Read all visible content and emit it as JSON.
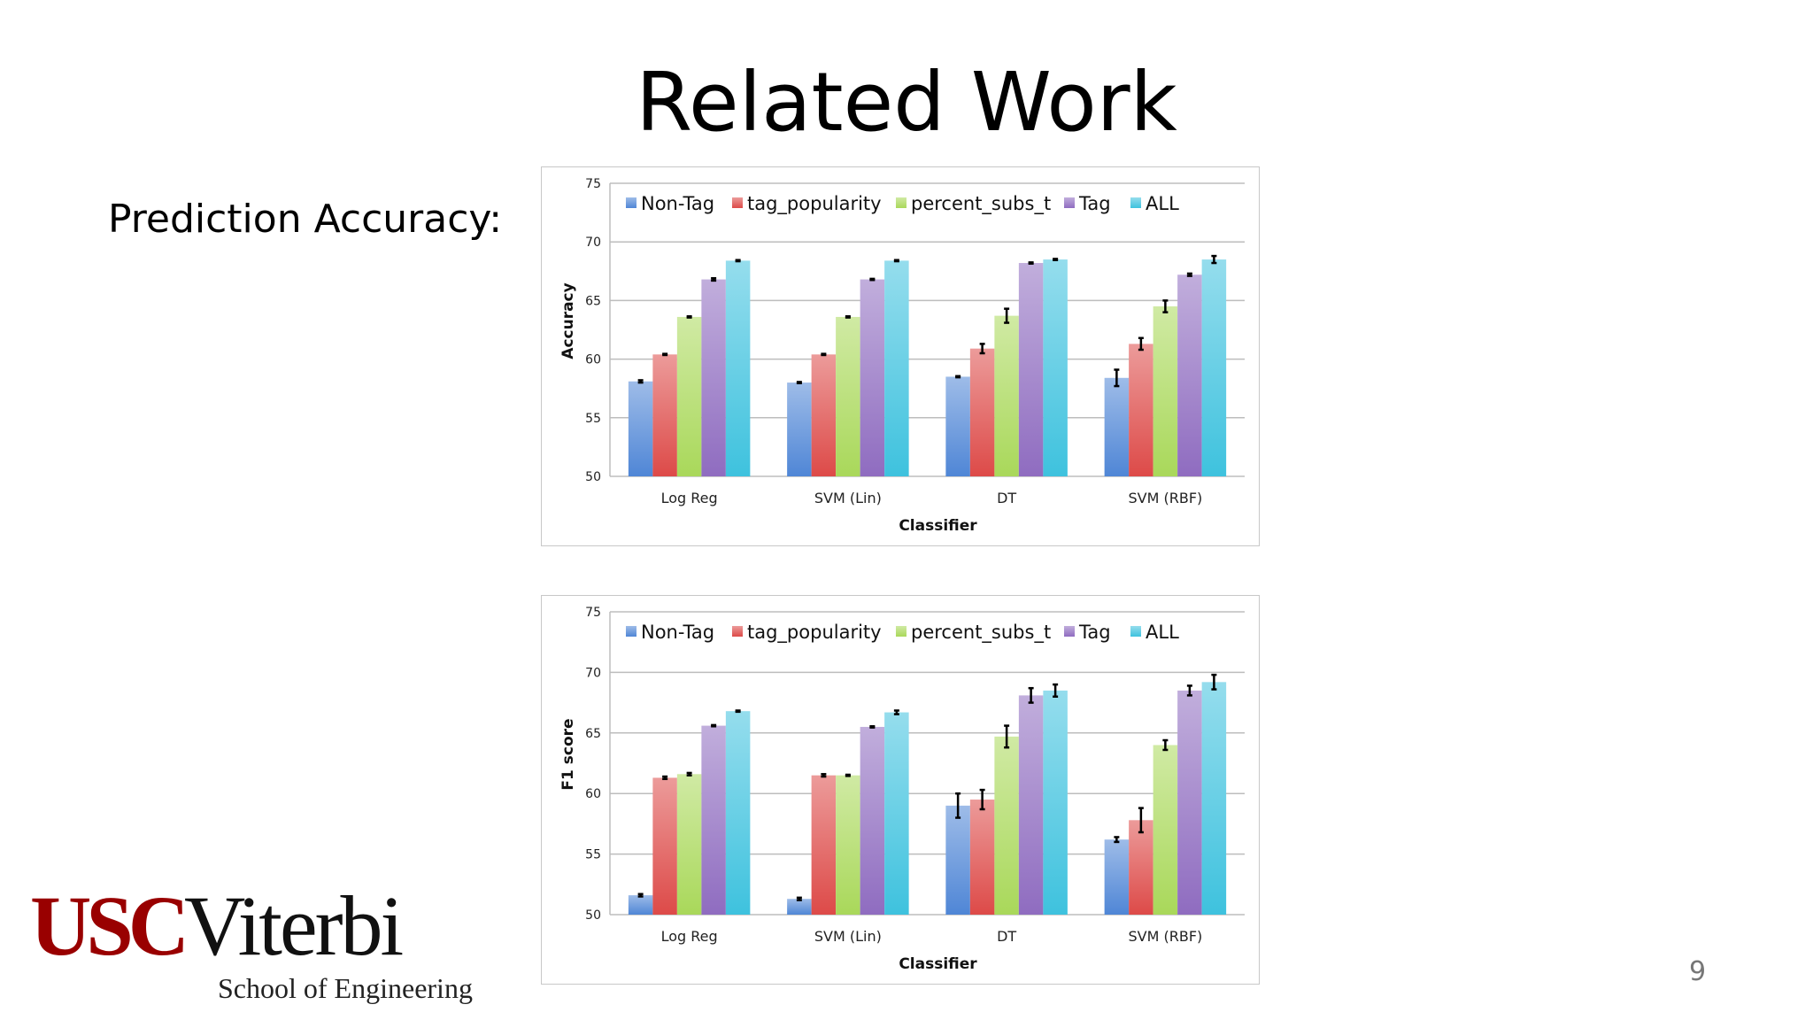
{
  "slide": {
    "title": "Related Work",
    "subtitle": "Prediction Accuracy:",
    "page_number": "9",
    "logo": {
      "usc": "USC",
      "viterbi": "Viterbi",
      "school": "School of Engineering"
    }
  },
  "colors": {
    "Non-Tag": "#4f86d6",
    "tag_popularity": "#dd4a48",
    "percent_subs_t": "#a9d85a",
    "Tag": "#8f6cc0",
    "ALL": "#3ec2de"
  },
  "chart_data": [
    {
      "type": "bar",
      "title": "",
      "xlabel": "Classifier",
      "ylabel": "Accuracy",
      "ylim": [
        50,
        75
      ],
      "yticks": [
        50,
        55,
        60,
        65,
        70,
        75
      ],
      "grid": true,
      "legend": "top",
      "categories": [
        "Log Reg",
        "SVM (Lin)",
        "DT",
        "SVM (RBF)"
      ],
      "series": [
        {
          "name": "Non-Tag",
          "values": [
            58.1,
            58.0,
            58.5,
            58.4
          ],
          "errors": [
            0.1,
            0.05,
            0.05,
            0.7
          ]
        },
        {
          "name": "tag_popularity",
          "values": [
            60.4,
            60.4,
            60.9,
            61.3
          ],
          "errors": [
            0.05,
            0.05,
            0.4,
            0.5
          ]
        },
        {
          "name": "percent_subs_t",
          "values": [
            63.6,
            63.6,
            63.7,
            64.5
          ],
          "errors": [
            0.05,
            0.05,
            0.6,
            0.5
          ]
        },
        {
          "name": "Tag",
          "values": [
            66.8,
            66.8,
            68.2,
            67.2
          ],
          "errors": [
            0.1,
            0.05,
            0.05,
            0.1
          ]
        },
        {
          "name": "ALL",
          "values": [
            68.4,
            68.4,
            68.5,
            68.5
          ],
          "errors": [
            0.05,
            0.05,
            0.05,
            0.3
          ]
        }
      ]
    },
    {
      "type": "bar",
      "title": "",
      "xlabel": "Classifier",
      "ylabel": "F1 score",
      "ylim": [
        50,
        75
      ],
      "yticks": [
        50,
        55,
        60,
        65,
        70,
        75
      ],
      "grid": true,
      "legend": "top",
      "categories": [
        "Log Reg",
        "SVM (Lin)",
        "DT",
        "SVM (RBF)"
      ],
      "series": [
        {
          "name": "Non-Tag",
          "values": [
            51.6,
            51.3,
            59.0,
            56.2
          ],
          "errors": [
            0.1,
            0.1,
            1.0,
            0.2
          ]
        },
        {
          "name": "tag_popularity",
          "values": [
            61.3,
            61.5,
            59.5,
            57.8
          ],
          "errors": [
            0.1,
            0.1,
            0.8,
            1.0
          ]
        },
        {
          "name": "percent_subs_t",
          "values": [
            61.6,
            61.5,
            64.7,
            64.0
          ],
          "errors": [
            0.1,
            0.05,
            0.9,
            0.4
          ]
        },
        {
          "name": "Tag",
          "values": [
            65.6,
            65.5,
            68.1,
            68.5
          ],
          "errors": [
            0.05,
            0.05,
            0.6,
            0.4
          ]
        },
        {
          "name": "ALL",
          "values": [
            66.8,
            66.7,
            68.5,
            69.2
          ],
          "errors": [
            0.05,
            0.15,
            0.5,
            0.6
          ]
        }
      ]
    }
  ]
}
